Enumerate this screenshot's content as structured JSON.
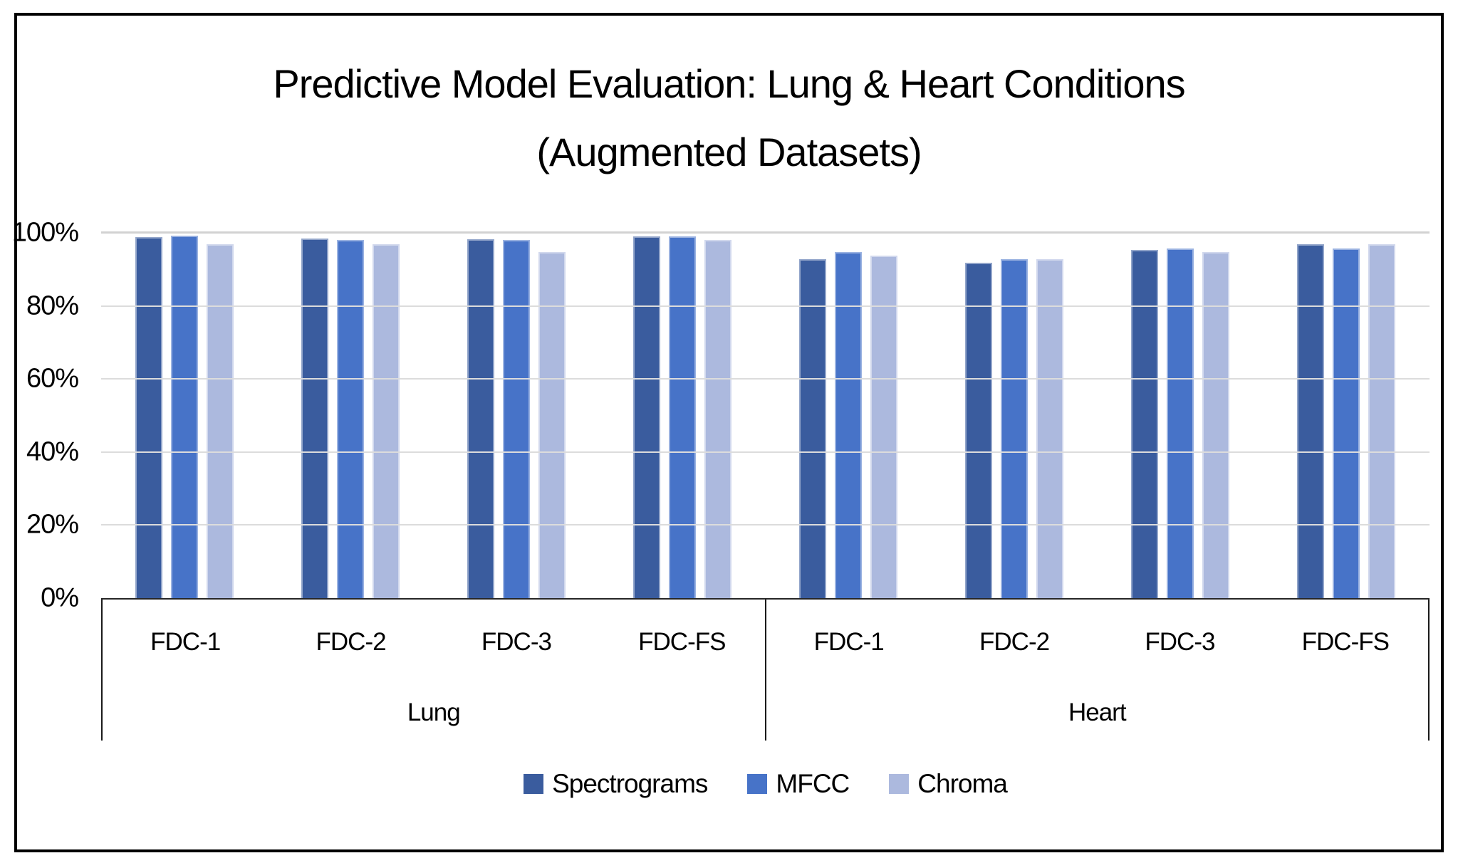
{
  "chart_data": {
    "type": "bar",
    "title": "Predictive Model Evaluation: Lung & Heart Conditions (Augmented Datasets)",
    "title_lines": [
      "Predictive Model Evaluation: Lung & Heart Conditions",
      "(Augmented Datasets)"
    ],
    "categories": [
      "FDC-1",
      "FDC-2",
      "FDC-3",
      "FDC-FS",
      "FDC-1",
      "FDC-2",
      "FDC-3",
      "FDC-FS"
    ],
    "category_groups": [
      {
        "label": "Lung",
        "span": 4
      },
      {
        "label": "Heart",
        "span": 4
      }
    ],
    "series": [
      {
        "name": "Spectrograms",
        "color": "#3A5C9E",
        "values": [
          99,
          98.7,
          98.5,
          99.2,
          93,
          92,
          95.5,
          97
        ]
      },
      {
        "name": "MFCC",
        "color": "#4773C8",
        "values": [
          99.5,
          98.2,
          98.2,
          99.2,
          95,
          93,
          96,
          96
        ]
      },
      {
        "name": "Chroma",
        "color": "#ACB9DE",
        "values": [
          97,
          97,
          95,
          98.3,
          94,
          93,
          95,
          97
        ]
      }
    ],
    "yticks": [
      0,
      20,
      40,
      60,
      80,
      100
    ],
    "ytick_labels": [
      "0%",
      "20%",
      "40%",
      "60%",
      "80%",
      "100%"
    ],
    "ylim": [
      0,
      100
    ],
    "grid": true,
    "legend_position": "bottom",
    "colors": {
      "gridline": "#DCDCDC",
      "axis_line": "#1A1A1A",
      "frame_border": "#000000",
      "background": "#FFFFFF"
    }
  }
}
